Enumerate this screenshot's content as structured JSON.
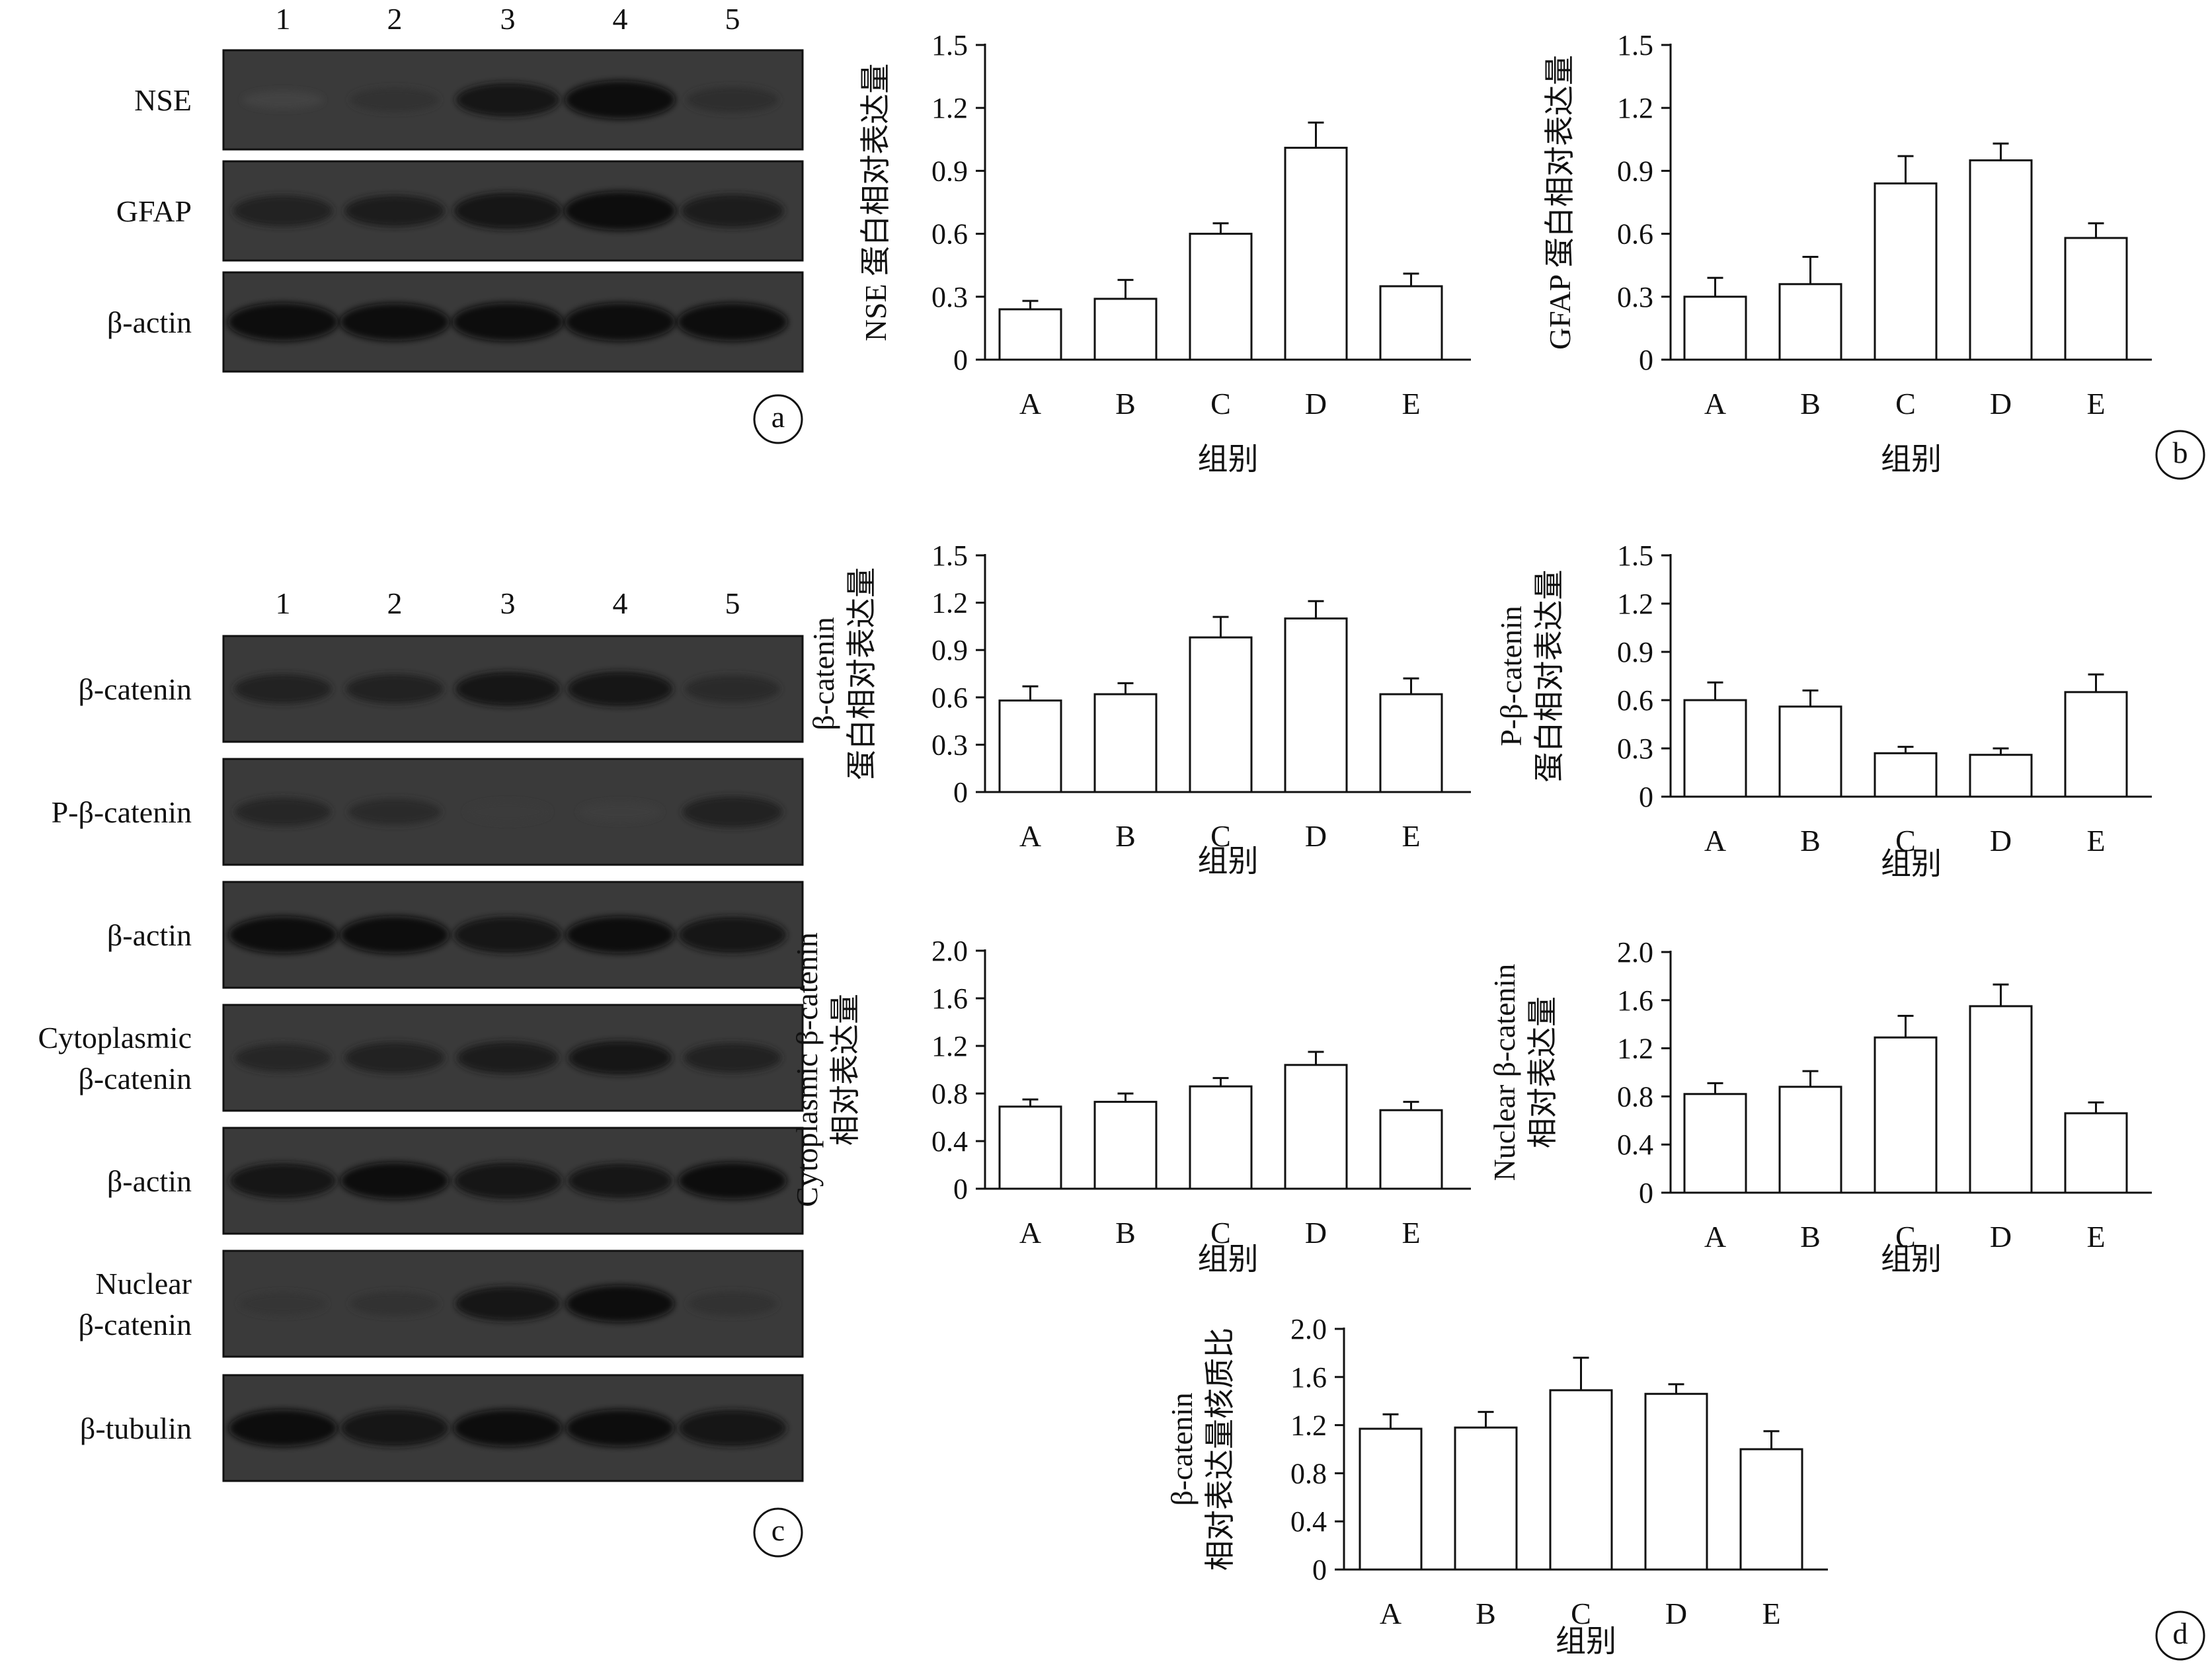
{
  "panels": {
    "a": {
      "letter": "a",
      "lanes": [
        "1",
        "2",
        "3",
        "4",
        "5"
      ],
      "rows": [
        {
          "label": "NSE",
          "intensity": [
            0.18,
            0.4,
            0.78,
            0.95,
            0.48
          ]
        },
        {
          "label": "GFAP",
          "intensity": [
            0.68,
            0.7,
            0.88,
            0.98,
            0.76
          ]
        },
        {
          "label": "β-actin",
          "intensity": [
            0.95,
            0.93,
            0.96,
            0.95,
            0.95
          ]
        }
      ]
    },
    "c": {
      "letter": "c",
      "lanes": [
        "1",
        "2",
        "3",
        "4",
        "5"
      ],
      "rows": [
        {
          "label": [
            "β-catenin"
          ],
          "intensity": [
            0.62,
            0.62,
            0.8,
            0.82,
            0.55
          ]
        },
        {
          "label": [
            "P-β-catenin"
          ],
          "intensity": [
            0.58,
            0.5,
            0.28,
            0.24,
            0.68
          ]
        },
        {
          "label": [
            "β-actin"
          ],
          "intensity": [
            0.9,
            0.92,
            0.88,
            0.9,
            0.88
          ]
        },
        {
          "label": [
            "Cytoplasmic",
            "β-catenin"
          ],
          "intensity": [
            0.58,
            0.68,
            0.72,
            0.78,
            0.62
          ]
        },
        {
          "label": [
            "β-actin"
          ],
          "intensity": [
            0.84,
            0.9,
            0.88,
            0.8,
            0.9
          ]
        },
        {
          "label": [
            "Nuclear",
            "β-catenin"
          ],
          "intensity": [
            0.36,
            0.4,
            0.8,
            0.9,
            0.4
          ]
        },
        {
          "label": [
            "β-tubulin"
          ],
          "intensity": [
            0.9,
            0.88,
            0.9,
            0.9,
            0.88
          ]
        }
      ]
    },
    "b_letter": "b",
    "d_letter": "d"
  },
  "chart_data": [
    {
      "type": "bar",
      "panel": "b",
      "categories": [
        "A",
        "B",
        "C",
        "D",
        "E"
      ],
      "values": [
        0.24,
        0.29,
        0.6,
        1.01,
        0.35
      ],
      "errors": [
        0.04,
        0.09,
        0.05,
        0.12,
        0.06
      ],
      "ylim": [
        0,
        1.5
      ],
      "yticks": [
        "0",
        "0.3",
        "0.6",
        "0.9",
        "1.2",
        "1.5"
      ],
      "ylabel": [
        "NSE 蛋白相对表达量"
      ],
      "xlabel": "组别"
    },
    {
      "type": "bar",
      "panel": "b",
      "categories": [
        "A",
        "B",
        "C",
        "D",
        "E"
      ],
      "values": [
        0.3,
        0.36,
        0.84,
        0.95,
        0.58
      ],
      "errors": [
        0.09,
        0.13,
        0.13,
        0.08,
        0.07
      ],
      "ylim": [
        0,
        1.5
      ],
      "yticks": [
        "0",
        "0.3",
        "0.6",
        "0.9",
        "1.2",
        "1.5"
      ],
      "ylabel": [
        "GFAP 蛋白相对表达量"
      ],
      "xlabel": "组别"
    },
    {
      "type": "bar",
      "panel": "d",
      "categories": [
        "A",
        "B",
        "C",
        "D",
        "E"
      ],
      "values": [
        0.58,
        0.62,
        0.98,
        1.1,
        0.62
      ],
      "errors": [
        0.09,
        0.07,
        0.13,
        0.11,
        0.1
      ],
      "ylim": [
        0,
        1.5
      ],
      "yticks": [
        "0",
        "0.3",
        "0.6",
        "0.9",
        "1.2",
        "1.5"
      ],
      "ylabel": [
        "β-catenin",
        "蛋白相对表达量"
      ],
      "xlabel": "组别"
    },
    {
      "type": "bar",
      "panel": "d",
      "categories": [
        "A",
        "B",
        "C",
        "D",
        "E"
      ],
      "values": [
        0.6,
        0.56,
        0.27,
        0.26,
        0.65
      ],
      "errors": [
        0.11,
        0.1,
        0.04,
        0.04,
        0.11
      ],
      "ylim": [
        0,
        1.5
      ],
      "yticks": [
        "0",
        "0.3",
        "0.6",
        "0.9",
        "1.2",
        "1.5"
      ],
      "ylabel": [
        "P-β-catenin",
        "蛋白相对表达量"
      ],
      "xlabel": "组别"
    },
    {
      "type": "bar",
      "panel": "d",
      "categories": [
        "A",
        "B",
        "C",
        "D",
        "E"
      ],
      "values": [
        0.69,
        0.73,
        0.86,
        1.04,
        0.66
      ],
      "errors": [
        0.06,
        0.07,
        0.07,
        0.11,
        0.07
      ],
      "ylim": [
        0,
        2.0
      ],
      "yticks": [
        "0",
        "0.4",
        "0.8",
        "1.2",
        "1.6",
        "2.0"
      ],
      "ylabel": [
        "Cytoplasmic β-catenin",
        "相对表达量"
      ],
      "xlabel": "组别"
    },
    {
      "type": "bar",
      "panel": "d",
      "categories": [
        "A",
        "B",
        "C",
        "D",
        "E"
      ],
      "values": [
        0.82,
        0.88,
        1.29,
        1.55,
        0.66
      ],
      "errors": [
        0.09,
        0.13,
        0.18,
        0.18,
        0.09
      ],
      "ylim": [
        0,
        2.0
      ],
      "yticks": [
        "0",
        "0.4",
        "0.8",
        "1.2",
        "1.6",
        "2.0"
      ],
      "ylabel": [
        "Nuclear β-catenin",
        "相对表达量"
      ],
      "xlabel": "组别"
    },
    {
      "type": "bar",
      "panel": "d",
      "categories": [
        "A",
        "B",
        "C",
        "D",
        "E"
      ],
      "values": [
        1.17,
        1.18,
        1.49,
        1.46,
        1.0
      ],
      "errors": [
        0.12,
        0.13,
        0.27,
        0.08,
        0.15
      ],
      "ylim": [
        0,
        2.0
      ],
      "yticks": [
        "0",
        "0.4",
        "0.8",
        "1.2",
        "1.6",
        "2.0"
      ],
      "ylabel": [
        "β-catenin",
        "相对表达量核质比"
      ],
      "xlabel": "组别"
    }
  ]
}
